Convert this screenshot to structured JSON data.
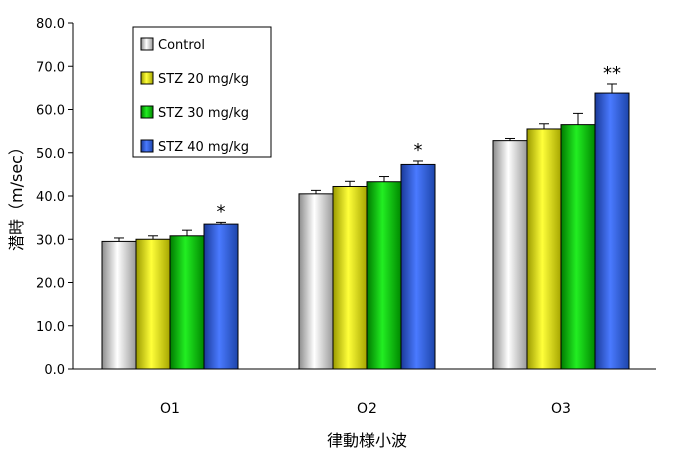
{
  "chart_data": {
    "type": "bar",
    "xlabel": "律動様小波",
    "ylabel": "潜時（m/sec）",
    "ylim": [
      0,
      80
    ],
    "yticks": [
      "0.0",
      "10.0",
      "20.0",
      "30.0",
      "40.0",
      "50.0",
      "60.0",
      "70.0",
      "80.0"
    ],
    "categories": [
      "O1",
      "O2",
      "O3"
    ],
    "grid": false,
    "legend": "top-left",
    "series": [
      {
        "name": "Control",
        "color": "#d9d9d9",
        "values": [
          29.5,
          40.5,
          52.8
        ],
        "errors": [
          0.8,
          0.8,
          0.5
        ]
      },
      {
        "name": "STZ 20 mg/kg",
        "color": "#ffff00",
        "values": [
          30.0,
          42.2,
          55.5
        ],
        "errors": [
          0.8,
          1.2,
          1.2
        ]
      },
      {
        "name": "STZ 30 mg/kg",
        "color": "#00dd00",
        "values": [
          30.8,
          43.3,
          56.5
        ],
        "errors": [
          1.3,
          1.2,
          2.6
        ]
      },
      {
        "name": "STZ 40 mg/kg",
        "color": "#3366ff",
        "values": [
          33.5,
          47.3,
          63.8
        ],
        "errors": [
          0.4,
          0.8,
          2.1
        ]
      }
    ],
    "annotations": [
      {
        "category": "O1",
        "series": "STZ 40 mg/kg",
        "text": "*"
      },
      {
        "category": "O2",
        "series": "STZ 40 mg/kg",
        "text": "*"
      },
      {
        "category": "O3",
        "series": "STZ 40 mg/kg",
        "text": "**"
      }
    ]
  }
}
